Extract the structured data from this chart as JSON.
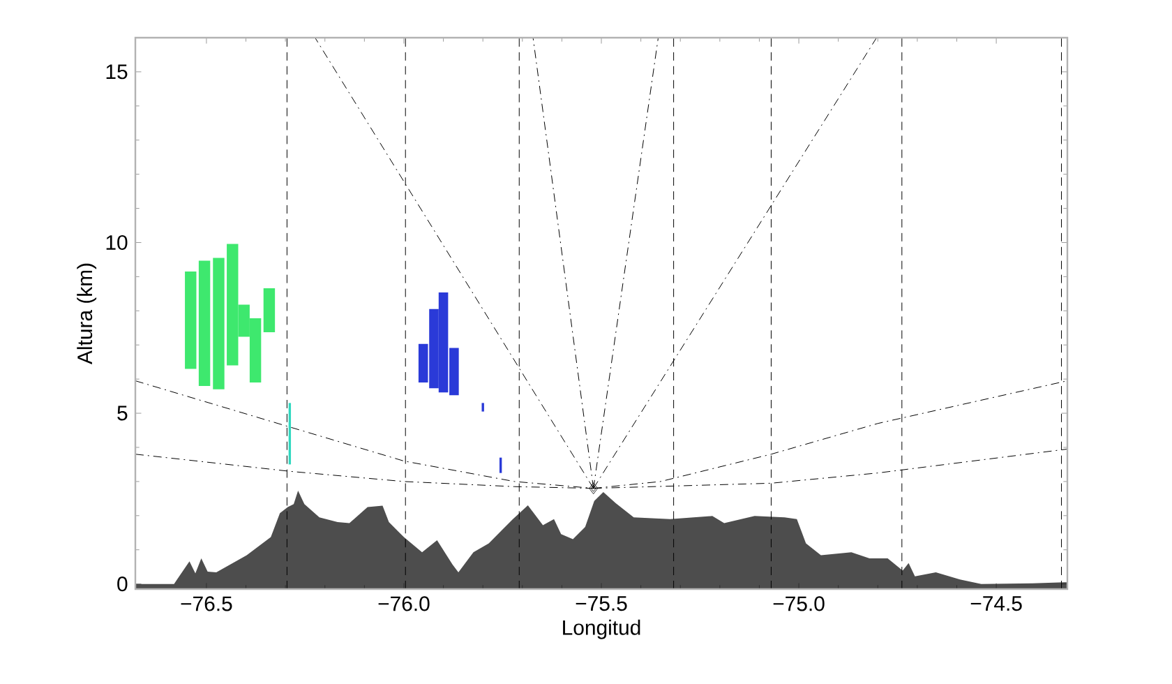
{
  "chart_data": {
    "type": "area",
    "xlabel": "Longitud",
    "ylabel": "Altura (km)",
    "xlim": [
      -76.68,
      -74.32
    ],
    "ylim": [
      -0.15,
      16
    ],
    "xticks": [
      {
        "value": -76.5,
        "label": "−76.5"
      },
      {
        "value": -76.0,
        "label": "−76.0"
      },
      {
        "value": -75.5,
        "label": "−75.5"
      },
      {
        "value": -75.0,
        "label": "−75.0"
      },
      {
        "value": -74.5,
        "label": "−74.5"
      }
    ],
    "yticks": [
      0,
      5,
      10,
      15
    ],
    "series": [
      {
        "color": "#4d4d4d",
        "x": [
          -76.68,
          -76.643,
          -76.582,
          -76.543,
          -76.528,
          -76.513,
          -76.497,
          -76.475,
          -76.398,
          -76.337,
          -76.314,
          -76.294,
          -76.279,
          -76.268,
          -76.252,
          -76.214,
          -76.168,
          -76.138,
          -76.092,
          -76.054,
          -76.038,
          -76.0,
          -75.954,
          -75.916,
          -75.877,
          -75.862,
          -75.824,
          -75.785,
          -75.724,
          -75.686,
          -75.648,
          -75.62,
          -75.602,
          -75.572,
          -75.541,
          -75.518,
          -75.495,
          -75.464,
          -75.418,
          -75.326,
          -75.219,
          -75.189,
          -75.112,
          -75.036,
          -75.005,
          -74.982,
          -74.944,
          -74.867,
          -74.821,
          -74.775,
          -74.737,
          -74.722,
          -74.706,
          -74.653,
          -74.592,
          -74.538,
          -74.408,
          -74.32
        ],
        "values": [
          0.0,
          0.0,
          0.0,
          0.66,
          0.31,
          0.75,
          0.36,
          0.34,
          0.84,
          1.37,
          2.07,
          2.25,
          2.34,
          2.73,
          2.34,
          1.95,
          1.81,
          1.78,
          2.25,
          2.29,
          1.81,
          1.37,
          0.93,
          1.28,
          0.57,
          0.34,
          0.93,
          1.19,
          1.9,
          2.3,
          1.72,
          1.9,
          1.46,
          1.31,
          1.67,
          2.43,
          2.69,
          2.37,
          1.95,
          1.9,
          1.99,
          1.78,
          1.99,
          1.95,
          1.9,
          1.19,
          0.84,
          0.93,
          0.75,
          0.75,
          0.39,
          0.61,
          0.22,
          0.34,
          0.13,
          0.0,
          0.02,
          0.05
        ]
      },
      {
        "type": "bar",
        "color": "#3ee86e",
        "x": [
          -76.54,
          -76.505,
          -76.469,
          -76.434,
          -76.405,
          -76.376,
          -76.341
        ],
        "values": [
          2.85,
          3.67,
          3.85,
          3.56,
          0.94,
          1.88,
          1.29
        ],
        "base": [
          6.3,
          5.8,
          5.7,
          6.4,
          7.24,
          5.9,
          7.37
        ]
      },
      {
        "type": "bar",
        "color": "#30d8c0",
        "x": [
          -76.289
        ],
        "values": [
          1.8
        ],
        "base": [
          3.5
        ]
      },
      {
        "type": "bar",
        "color": "#2a3ad8",
        "x": [
          -75.951,
          -75.924,
          -75.9,
          -75.873
        ],
        "values": [
          1.13,
          2.32,
          2.93,
          1.38
        ],
        "base": [
          5.9,
          5.73,
          5.61,
          5.53
        ]
      },
      {
        "type": "bar",
        "color": "#2a3ad8",
        "x": [
          -75.8
        ],
        "values": [
          0.25
        ],
        "base": [
          5.05
        ]
      },
      {
        "type": "bar",
        "color": "#2a3ad8",
        "x": [
          -75.755
        ],
        "values": [
          0.45
        ],
        "base": [
          3.25
        ]
      },
      {
        "type": "line",
        "color": "#000000",
        "line_style": "dashdot",
        "x": [
          -76.68,
          -76.29,
          -76.0,
          -75.72,
          -75.52
        ],
        "values": [
          5.95,
          4.6,
          3.6,
          3.0,
          2.8
        ]
      },
      {
        "type": "line",
        "color": "#000000",
        "line_style": "dashdot",
        "x": [
          -76.68,
          -76.29,
          -76.0,
          -75.72,
          -75.52
        ],
        "values": [
          3.8,
          3.3,
          3.0,
          2.85,
          2.8
        ]
      },
      {
        "type": "line",
        "color": "#000000",
        "line_style": "dashdot",
        "x": [
          -75.52,
          -75.35,
          -75.07,
          -74.8,
          -74.32
        ],
        "values": [
          2.8,
          3.0,
          3.8,
          4.7,
          5.95
        ]
      },
      {
        "type": "line",
        "color": "#000000",
        "line_style": "dashdot",
        "x": [
          -75.52,
          -75.07,
          -74.8,
          -74.32
        ],
        "values": [
          2.8,
          2.95,
          3.25,
          3.95
        ]
      },
      {
        "type": "line",
        "color": "#000000",
        "line_style": "dashdot",
        "x": [
          -75.52,
          -76.225
        ],
        "values": [
          2.8,
          16
        ]
      },
      {
        "type": "line",
        "color": "#000000",
        "line_style": "dashdot",
        "x": [
          -75.52,
          -75.673
        ],
        "values": [
          2.8,
          16
        ]
      },
      {
        "type": "line",
        "color": "#000000",
        "line_style": "dashdot",
        "x": [
          -75.52,
          -75.356
        ],
        "values": [
          2.8,
          16
        ]
      },
      {
        "type": "line",
        "color": "#000000",
        "line_style": "dashdot",
        "x": [
          -75.52,
          -74.803
        ],
        "values": [
          2.8,
          16
        ]
      },
      {
        "type": "scatter",
        "color": "#000000",
        "marker": "diamond",
        "x": [
          -75.52
        ],
        "values": [
          2.8
        ]
      }
    ],
    "ref_lines": [
      {
        "axis": "x",
        "value": -76.296,
        "line_style": "dashed"
      },
      {
        "axis": "x",
        "value": -75.996,
        "line_style": "dashed"
      },
      {
        "axis": "x",
        "value": -75.708,
        "line_style": "dashed"
      },
      {
        "axis": "x",
        "value": -75.317,
        "line_style": "dashed"
      },
      {
        "axis": "x",
        "value": -75.07,
        "line_style": "dashed"
      },
      {
        "axis": "x",
        "value": -74.739,
        "line_style": "dashed"
      },
      {
        "axis": "x",
        "value": -74.335,
        "line_style": "dashed"
      }
    ]
  }
}
